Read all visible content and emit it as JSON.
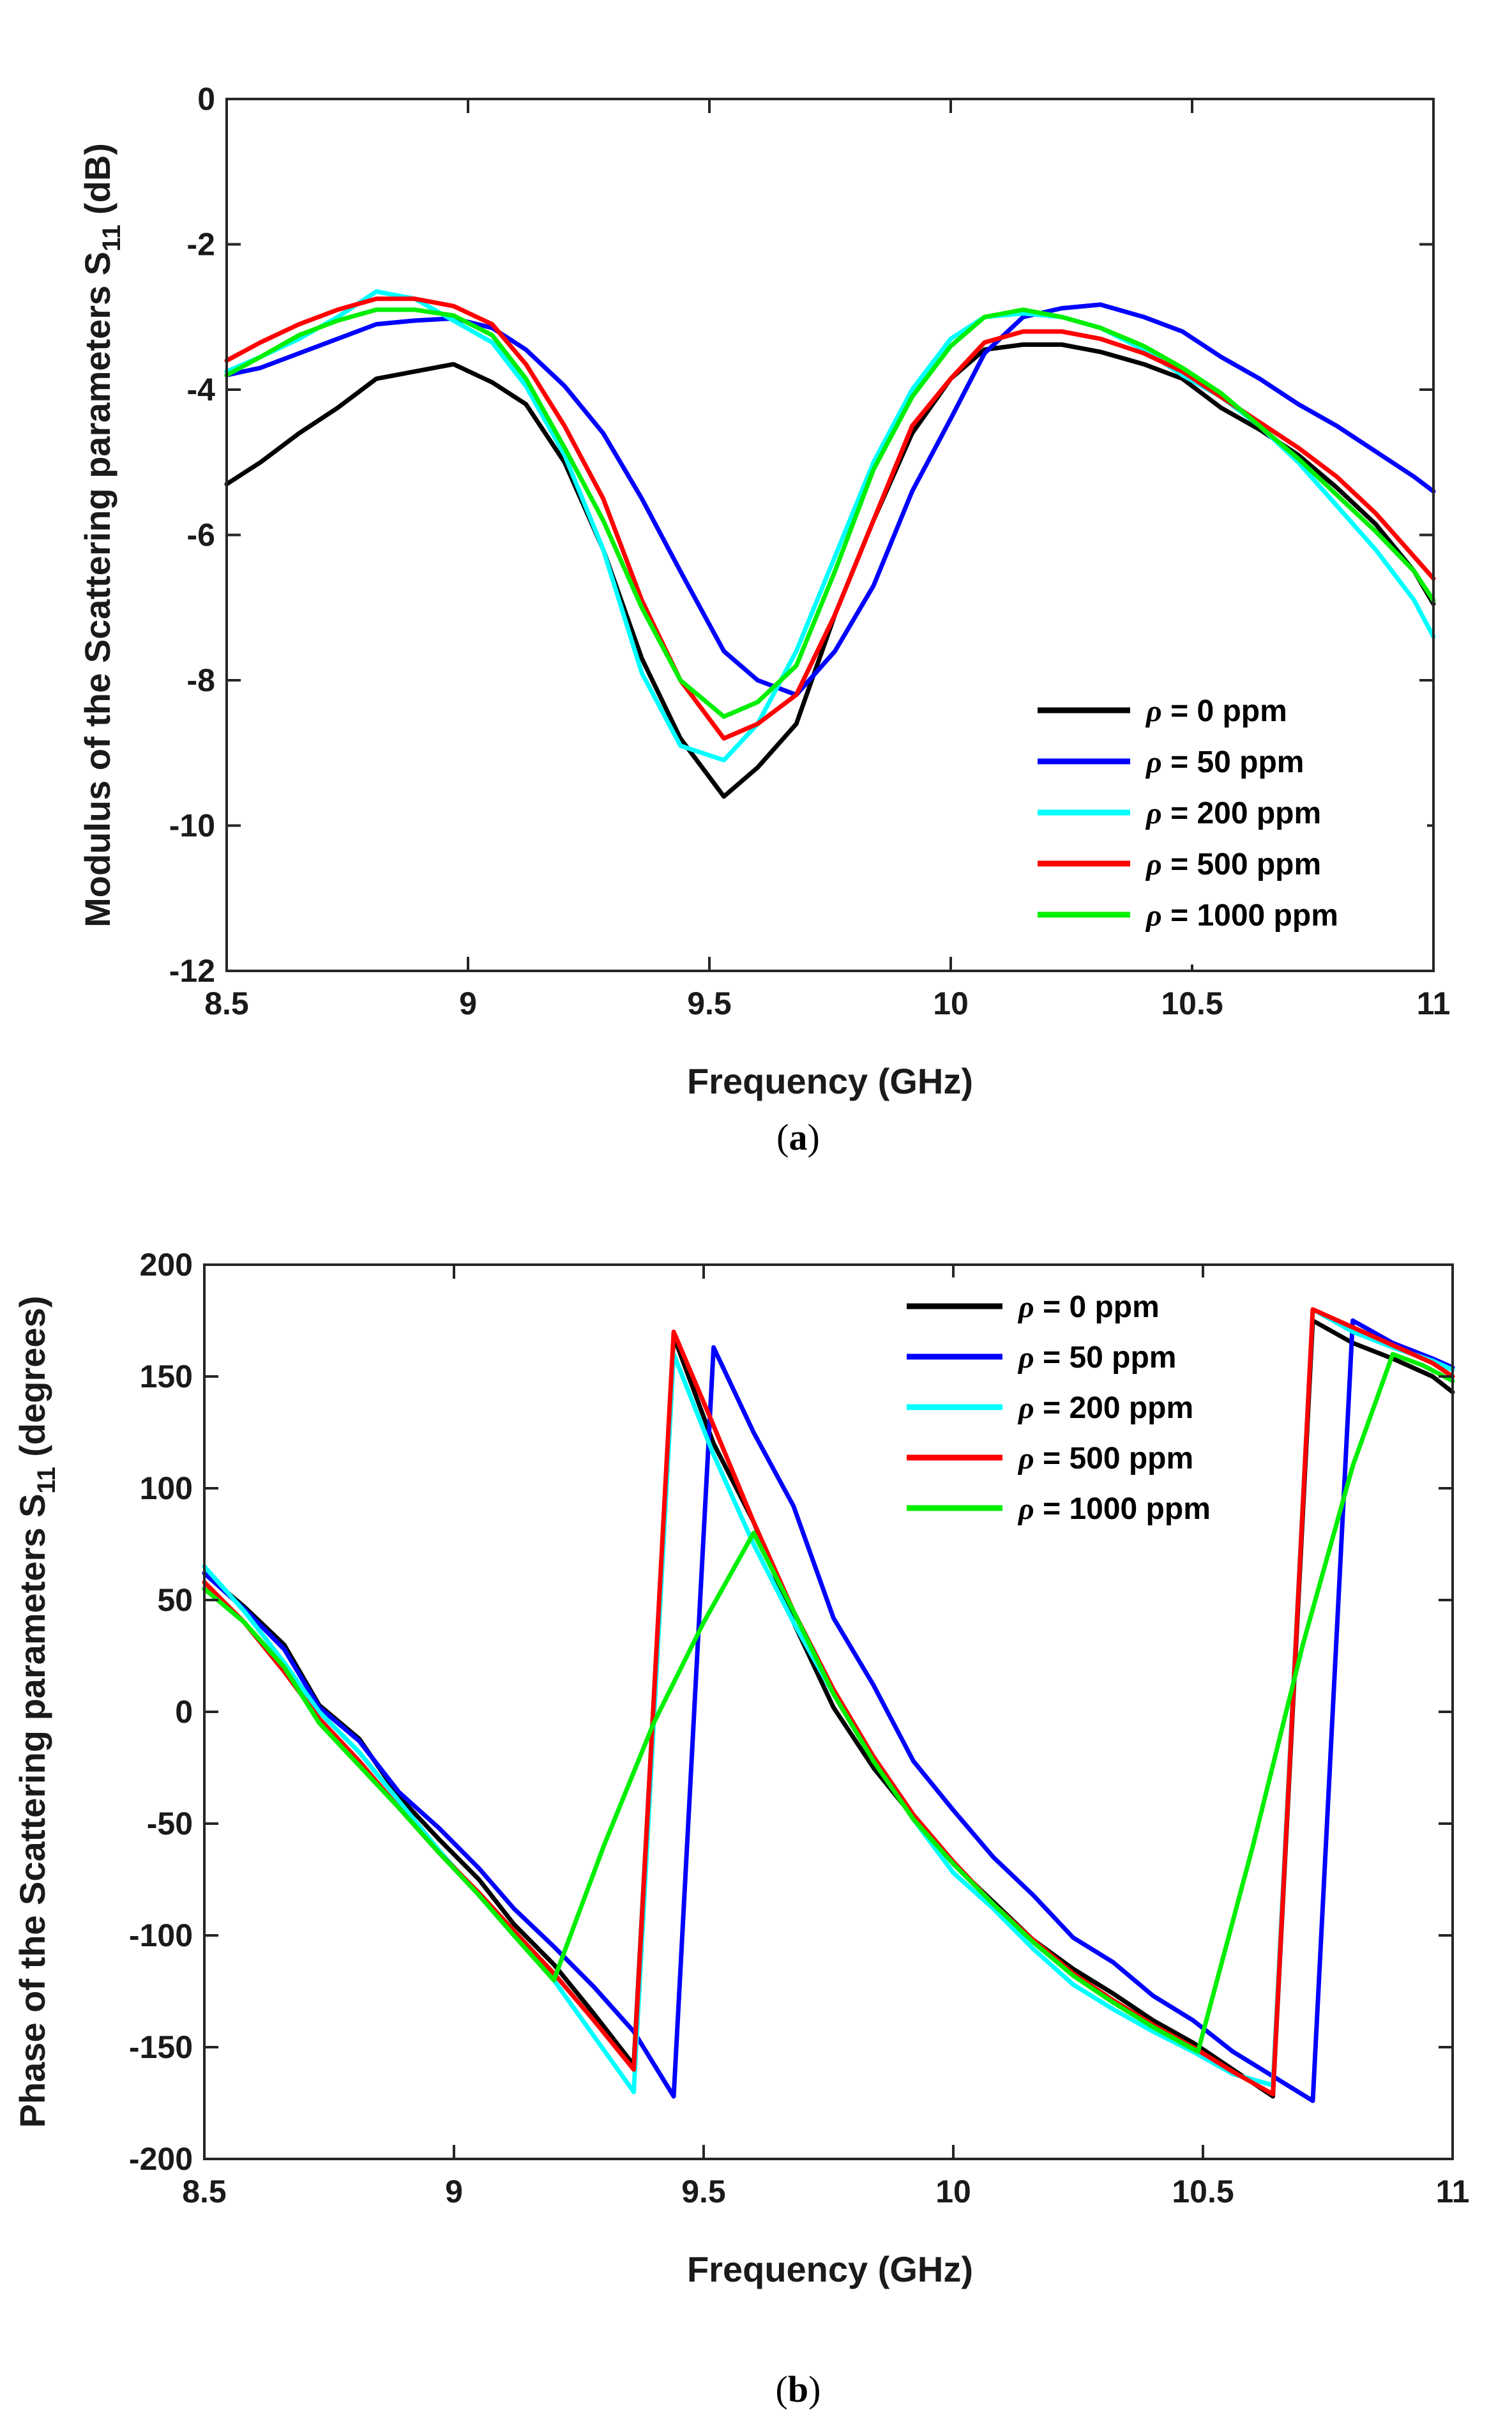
{
  "chart_data": [
    {
      "type": "line",
      "panel_label": "a",
      "xlabel": "Frequency (GHz)",
      "ylabel_main": "Modulus of the Scattering parameters S",
      "ylabel_sub": "11",
      "ylabel_unit": " (dB)",
      "xlim": [
        8.5,
        11
      ],
      "ylim": [
        -12,
        0
      ],
      "xticks": [
        8.5,
        9,
        9.5,
        10,
        10.5,
        11
      ],
      "xtick_labels": [
        "8.5",
        "9",
        "9.5",
        "10",
        "10.5",
        "11"
      ],
      "yticks": [
        -12,
        -10,
        -8,
        -6,
        -4,
        -2,
        0
      ],
      "ytick_labels": [
        "-12",
        "-10",
        "-8",
        "-6",
        "-4",
        "-2",
        "0"
      ],
      "legend_position": "bottom-right",
      "series": [
        {
          "name": "ρ = 0 ppm",
          "rho": "ρ",
          "rest": " = 0 ppm",
          "color": "#000000",
          "x": [
            8.5,
            8.57,
            8.65,
            8.73,
            8.81,
            8.89,
            8.97,
            9.05,
            9.12,
            9.2,
            9.28,
            9.36,
            9.44,
            9.53,
            9.6,
            9.68,
            9.76,
            9.84,
            9.92,
            10.0,
            10.07,
            10.15,
            10.23,
            10.31,
            10.4,
            10.48,
            10.56,
            10.64,
            10.72,
            10.8,
            10.88,
            10.96,
            11.0
          ],
          "y": [
            -5.3,
            -5.0,
            -4.6,
            -4.25,
            -3.85,
            -3.75,
            -3.65,
            -3.9,
            -4.2,
            -5.0,
            -6.2,
            -7.7,
            -8.8,
            -9.6,
            -9.2,
            -8.6,
            -7.1,
            -5.8,
            -4.6,
            -3.85,
            -3.45,
            -3.38,
            -3.38,
            -3.48,
            -3.65,
            -3.85,
            -4.25,
            -4.55,
            -4.9,
            -5.35,
            -5.85,
            -6.5,
            -6.95
          ]
        },
        {
          "name": "ρ = 50 ppm",
          "rho": "ρ",
          "rest": " = 50 ppm",
          "color": "#0000ff",
          "x": [
            8.5,
            8.57,
            8.65,
            8.73,
            8.81,
            8.89,
            8.97,
            9.05,
            9.12,
            9.2,
            9.28,
            9.36,
            9.44,
            9.53,
            9.6,
            9.68,
            9.76,
            9.84,
            9.92,
            10.0,
            10.07,
            10.15,
            10.23,
            10.31,
            10.4,
            10.48,
            10.56,
            10.64,
            10.72,
            10.8,
            10.88,
            10.96,
            11.0
          ],
          "y": [
            -3.8,
            -3.7,
            -3.5,
            -3.3,
            -3.1,
            -3.05,
            -3.02,
            -3.15,
            -3.45,
            -3.95,
            -4.6,
            -5.5,
            -6.5,
            -7.6,
            -8.0,
            -8.2,
            -7.6,
            -6.7,
            -5.4,
            -4.4,
            -3.5,
            -3.0,
            -2.88,
            -2.83,
            -3.0,
            -3.2,
            -3.55,
            -3.85,
            -4.2,
            -4.5,
            -4.85,
            -5.2,
            -5.4
          ]
        },
        {
          "name": "ρ = 200 ppm",
          "rho": "ρ",
          "rest": " = 200 ppm",
          "color": "#00ffff",
          "x": [
            8.5,
            8.57,
            8.65,
            8.73,
            8.81,
            8.89,
            8.97,
            9.05,
            9.12,
            9.2,
            9.28,
            9.36,
            9.44,
            9.53,
            9.6,
            9.68,
            9.76,
            9.84,
            9.92,
            10.0,
            10.07,
            10.15,
            10.23,
            10.31,
            10.4,
            10.48,
            10.56,
            10.64,
            10.72,
            10.8,
            10.88,
            10.96,
            11.0
          ],
          "y": [
            -3.75,
            -3.55,
            -3.3,
            -3.0,
            -2.65,
            -2.75,
            -3.05,
            -3.35,
            -3.95,
            -4.9,
            -6.2,
            -7.9,
            -8.9,
            -9.1,
            -8.6,
            -7.6,
            -6.3,
            -5.0,
            -4.0,
            -3.3,
            -3.0,
            -2.95,
            -3.0,
            -3.15,
            -3.45,
            -3.8,
            -4.1,
            -4.5,
            -5.0,
            -5.6,
            -6.2,
            -6.9,
            -7.4
          ]
        },
        {
          "name": "ρ = 500 ppm",
          "rho": "ρ",
          "rest": " = 500 ppm",
          "color": "#ff0000",
          "x": [
            8.5,
            8.57,
            8.65,
            8.73,
            8.81,
            8.89,
            8.97,
            9.05,
            9.12,
            9.2,
            9.28,
            9.36,
            9.44,
            9.53,
            9.6,
            9.68,
            9.76,
            9.84,
            9.92,
            10.0,
            10.07,
            10.15,
            10.23,
            10.31,
            10.4,
            10.48,
            10.56,
            10.64,
            10.72,
            10.8,
            10.88,
            10.96,
            11.0
          ],
          "y": [
            -3.6,
            -3.35,
            -3.1,
            -2.9,
            -2.75,
            -2.75,
            -2.85,
            -3.1,
            -3.65,
            -4.5,
            -5.5,
            -6.9,
            -8.0,
            -8.8,
            -8.6,
            -8.2,
            -7.1,
            -5.8,
            -4.5,
            -3.85,
            -3.35,
            -3.2,
            -3.2,
            -3.3,
            -3.5,
            -3.75,
            -4.1,
            -4.45,
            -4.8,
            -5.2,
            -5.7,
            -6.3,
            -6.6
          ]
        },
        {
          "name": "ρ = 1000 ppm",
          "rho": "ρ",
          "rest": " = 1000 ppm",
          "color": "#00ee00",
          "x": [
            8.5,
            8.57,
            8.65,
            8.73,
            8.81,
            8.89,
            8.97,
            9.05,
            9.12,
            9.2,
            9.28,
            9.36,
            9.44,
            9.53,
            9.6,
            9.68,
            9.76,
            9.84,
            9.92,
            10.0,
            10.07,
            10.15,
            10.23,
            10.31,
            10.4,
            10.48,
            10.56,
            10.64,
            10.72,
            10.8,
            10.88,
            10.96,
            11.0
          ],
          "y": [
            -3.8,
            -3.55,
            -3.25,
            -3.05,
            -2.9,
            -2.9,
            -2.98,
            -3.25,
            -3.85,
            -4.8,
            -5.8,
            -7.0,
            -8.0,
            -8.5,
            -8.3,
            -7.8,
            -6.5,
            -5.1,
            -4.1,
            -3.4,
            -3.0,
            -2.9,
            -3.0,
            -3.15,
            -3.4,
            -3.7,
            -4.05,
            -4.5,
            -4.95,
            -5.45,
            -5.95,
            -6.5,
            -6.9
          ]
        }
      ]
    },
    {
      "type": "line",
      "panel_label": "b",
      "xlabel": "Frequency (GHz)",
      "ylabel_main": "Phase of the Scattering parameters S",
      "ylabel_sub": "11",
      "ylabel_unit": " (degrees)",
      "xlim": [
        8.5,
        11
      ],
      "ylim": [
        -200,
        200
      ],
      "xticks": [
        8.5,
        9,
        9.5,
        10,
        10.5,
        11
      ],
      "xtick_labels": [
        "8.5",
        "9",
        "9.5",
        "10",
        "10.5",
        "11"
      ],
      "yticks": [
        -200,
        -150,
        -100,
        -50,
        0,
        50,
        100,
        150,
        200
      ],
      "ytick_labels": [
        "-200",
        "-150",
        "-100",
        "-50",
        "0",
        "50",
        "100",
        "150",
        "200"
      ],
      "legend_position": "top-right",
      "series": [
        {
          "name": "ρ = 0 ppm",
          "rho": "ρ",
          "rest": " = 0 ppm",
          "color": "#000000",
          "x": [
            8.5,
            8.58,
            8.66,
            8.73,
            8.81,
            8.89,
            8.97,
            9.05,
            9.12,
            9.2,
            9.28,
            9.36,
            9.44,
            9.52,
            9.6,
            9.68,
            9.76,
            9.84,
            9.92,
            10.0,
            10.08,
            10.16,
            10.24,
            10.32,
            10.4,
            10.48,
            10.56,
            10.64,
            10.72,
            10.8,
            10.88,
            10.96,
            11.0
          ],
          "y": [
            62,
            47,
            30,
            3,
            -12,
            -38,
            -57,
            -75,
            -95,
            -113,
            -135,
            -158,
            168,
            120,
            85,
            40,
            2,
            -25,
            -47,
            -68,
            -85,
            -102,
            -115,
            -126,
            -138,
            -148,
            -160,
            -172,
            175,
            165,
            158,
            150,
            143
          ]
        },
        {
          "name": "ρ = 50 ppm",
          "rho": "ρ",
          "rest": " = 50 ppm",
          "color": "#0000ff",
          "x": [
            8.5,
            8.58,
            8.66,
            8.73,
            8.81,
            8.89,
            8.97,
            9.05,
            9.12,
            9.2,
            9.28,
            9.36,
            9.44,
            9.52,
            9.6,
            9.68,
            9.76,
            9.84,
            9.92,
            10.0,
            10.08,
            10.16,
            10.24,
            10.32,
            10.4,
            10.48,
            10.56,
            10.64,
            10.72,
            10.8,
            10.88,
            10.96,
            11.0
          ],
          "y": [
            62,
            46,
            28,
            2,
            -13,
            -36,
            -52,
            -70,
            -88,
            -105,
            -123,
            -143,
            -172,
            163,
            125,
            92,
            42,
            12,
            -22,
            -44,
            -65,
            -82,
            -101,
            -112,
            -127,
            -138,
            -152,
            -163,
            -174,
            175,
            165,
            158,
            154
          ]
        },
        {
          "name": "ρ = 200 ppm",
          "rho": "ρ",
          "rest": " = 200 ppm",
          "color": "#00ffff",
          "x": [
            8.5,
            8.58,
            8.66,
            8.73,
            8.81,
            8.89,
            8.97,
            9.05,
            9.12,
            9.2,
            9.28,
            9.36,
            9.44,
            9.52,
            9.6,
            9.68,
            9.76,
            9.84,
            9.92,
            10.0,
            10.08,
            10.16,
            10.24,
            10.32,
            10.4,
            10.48,
            10.56,
            10.64,
            10.72,
            10.8,
            10.88,
            10.96,
            11.0
          ],
          "y": [
            65,
            45,
            22,
            0,
            -18,
            -40,
            -62,
            -82,
            -100,
            -120,
            -145,
            -170,
            160,
            115,
            75,
            40,
            8,
            -20,
            -48,
            -72,
            -88,
            -106,
            -122,
            -133,
            -143,
            -152,
            -162,
            -167,
            180,
            170,
            163,
            157,
            153
          ]
        },
        {
          "name": "ρ = 500 ppm",
          "rho": "ρ",
          "rest": " = 500 ppm",
          "color": "#ff0000",
          "x": [
            8.5,
            8.58,
            8.66,
            8.73,
            8.81,
            8.89,
            8.97,
            9.05,
            9.12,
            9.2,
            9.28,
            9.36,
            9.44,
            9.52,
            9.6,
            9.68,
            9.76,
            9.84,
            9.92,
            10.0,
            10.08,
            10.16,
            10.24,
            10.32,
            10.4,
            10.48,
            10.56,
            10.64,
            10.72,
            10.8,
            10.88,
            10.96,
            11.0
          ],
          "y": [
            58,
            40,
            18,
            -3,
            -22,
            -43,
            -63,
            -81,
            -98,
            -117,
            -138,
            -160,
            170,
            128,
            85,
            45,
            10,
            -20,
            -46,
            -67,
            -86,
            -102,
            -117,
            -129,
            -140,
            -150,
            -161,
            -171,
            180,
            172,
            164,
            156,
            150
          ]
        },
        {
          "name": "ρ = 1000 ppm",
          "rho": "ρ",
          "rest": " = 1000 ppm",
          "color": "#00ee00",
          "x": [
            8.5,
            8.58,
            8.66,
            8.73,
            8.81,
            8.89,
            8.97,
            9.05,
            9.12,
            9.2,
            9.3,
            9.4,
            9.5,
            9.6,
            9.68,
            9.76,
            9.84,
            9.92,
            10.0,
            10.08,
            10.16,
            10.24,
            10.32,
            10.4,
            10.49,
            10.6,
            10.7,
            10.8,
            10.88,
            10.94,
            11.0
          ],
          "y": [
            55,
            40,
            20,
            -5,
            -24,
            -43,
            -63,
            -82,
            -100,
            -120,
            -60,
            -5,
            40,
            80,
            45,
            8,
            -22,
            -48,
            -68,
            -86,
            -103,
            -118,
            -130,
            -141,
            -152,
            -60,
            30,
            110,
            160,
            155,
            148
          ]
        }
      ]
    }
  ]
}
